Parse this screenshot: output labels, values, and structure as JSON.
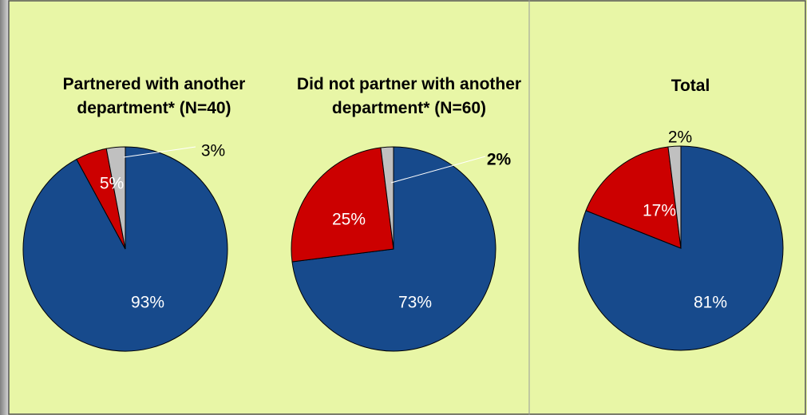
{
  "chart_data": [
    {
      "type": "pie",
      "title": "Partnered with another department* (N=40)",
      "values": [
        93,
        5,
        3
      ],
      "value_labels": [
        "93%",
        "5%",
        "3%"
      ],
      "colors": [
        "#174a8c",
        "#cc0000",
        "#c0c0c0"
      ]
    },
    {
      "type": "pie",
      "title": "Did not partner with another department* (N=60)",
      "values": [
        73,
        25,
        2
      ],
      "value_labels": [
        "73%",
        "25%",
        "2%"
      ],
      "colors": [
        "#174a8c",
        "#cc0000",
        "#c0c0c0"
      ]
    },
    {
      "type": "pie",
      "title": "Total",
      "values": [
        81,
        17,
        2
      ],
      "value_labels": [
        "81%",
        "17%",
        "2%"
      ],
      "colors": [
        "#174a8c",
        "#cc0000",
        "#c0c0c0"
      ]
    }
  ]
}
